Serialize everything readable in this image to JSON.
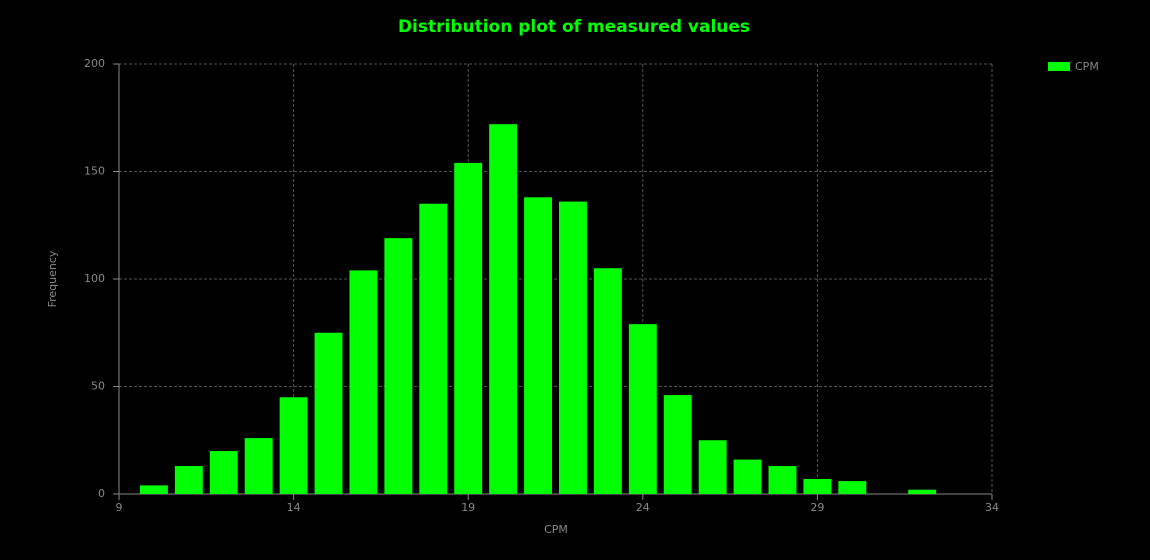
{
  "chart_data": {
    "type": "bar",
    "title": "Distribution plot of measured values",
    "x_label": "CPM",
    "y_label": "Frequency",
    "x": [
      10,
      11,
      12,
      13,
      14,
      15,
      16,
      17,
      18,
      19,
      20,
      21,
      22,
      23,
      24,
      25,
      26,
      27,
      28,
      29,
      30,
      31,
      32
    ],
    "series": [
      {
        "name": "CPM",
        "color": "#00ff00",
        "values": [
          4,
          13,
          20,
          26,
          45,
          75,
          104,
          119,
          135,
          154,
          172,
          138,
          136,
          105,
          79,
          46,
          25,
          16,
          13,
          7,
          6,
          0,
          2
        ]
      }
    ],
    "xlim": [
      9,
      34
    ],
    "xticks": [
      9,
      14,
      19,
      24,
      29,
      34
    ],
    "ylim": [
      0,
      200
    ],
    "yticks": [
      0,
      50,
      100,
      150,
      200
    ],
    "grid": true,
    "legend": "top-right"
  }
}
